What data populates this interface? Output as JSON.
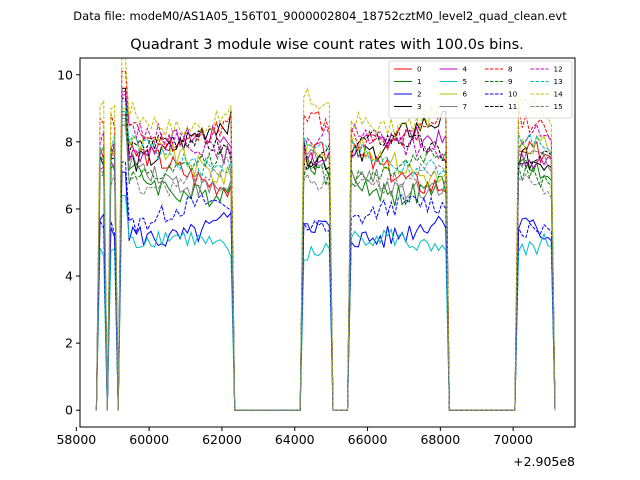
{
  "figure": {
    "suptitle": "Data file: modeM0/AS1A05_156T01_9000002804_18752cztM0_level2_quad_clean.evt"
  },
  "chart_data": {
    "type": "line",
    "title": "Quadrant 3 module wise count rates with 100.0s bins.",
    "xlabel": "",
    "ylabel": "",
    "x_offset_label": "+2.905e8",
    "xlim": [
      58100,
      71700
    ],
    "ylim": [
      -0.5,
      10.5
    ],
    "xticks": [
      58000,
      60000,
      62000,
      64000,
      66000,
      68000,
      70000
    ],
    "xtick_labels": [
      "58000",
      "60000",
      "62000",
      "64000",
      "66000",
      "68000",
      "70000"
    ],
    "yticks": [
      0,
      2,
      4,
      6,
      8,
      10
    ],
    "ytick_labels": [
      "0",
      "2",
      "4",
      "6",
      "8",
      "10"
    ],
    "grid": false,
    "legend_position": "top-right",
    "bin_seconds": 100,
    "gti": [
      [
        58600,
        58800
      ],
      [
        58950,
        59100
      ],
      [
        59250,
        62300
      ],
      [
        64250,
        65000
      ],
      [
        65550,
        68150
      ],
      [
        70100,
        71100
      ]
    ],
    "series": [
      {
        "name": "0",
        "color": "#ff0000",
        "dash": "solid",
        "level": 7.2,
        "noise": 0.35,
        "amp": 0.5
      },
      {
        "name": "1",
        "color": "#008000",
        "dash": "solid",
        "level": 6.9,
        "noise": 0.35,
        "amp": 0.5
      },
      {
        "name": "2",
        "color": "#0000ff",
        "dash": "solid",
        "level": 5.5,
        "noise": 0.35,
        "amp": 0.4
      },
      {
        "name": "3",
        "color": "#000000",
        "dash": "solid",
        "level": 8.0,
        "noise": 0.35,
        "amp": 0.6
      },
      {
        "name": "4",
        "color": "#c000c0",
        "dash": "solid",
        "level": 7.8,
        "noise": 0.3,
        "amp": 0.4
      },
      {
        "name": "5",
        "color": "#00bfbf",
        "dash": "solid",
        "level": 4.8,
        "noise": 0.3,
        "amp": 0.4
      },
      {
        "name": "6",
        "color": "#bfbf00",
        "dash": "solid",
        "level": 7.4,
        "noise": 0.35,
        "amp": 0.5
      },
      {
        "name": "7",
        "color": "#808080",
        "dash": "solid",
        "level": 7.1,
        "noise": 0.35,
        "amp": 0.5
      },
      {
        "name": "8",
        "color": "#ff0000",
        "dash": "dashed",
        "level": 8.5,
        "noise": 0.3,
        "amp": 0.5
      },
      {
        "name": "9",
        "color": "#008000",
        "dash": "dashed",
        "level": 7.3,
        "noise": 0.3,
        "amp": 0.4
      },
      {
        "name": "10",
        "color": "#0000ff",
        "dash": "dashed",
        "level": 5.8,
        "noise": 0.3,
        "amp": 0.4
      },
      {
        "name": "11",
        "color": "#000000",
        "dash": "dashed",
        "level": 7.7,
        "noise": 0.3,
        "amp": 0.4
      },
      {
        "name": "12",
        "color": "#c000c0",
        "dash": "dashed",
        "level": 7.9,
        "noise": 0.3,
        "amp": 0.4
      },
      {
        "name": "13",
        "color": "#00bfbf",
        "dash": "dashed",
        "level": 7.6,
        "noise": 0.3,
        "amp": 0.4
      },
      {
        "name": "14",
        "color": "#bfbf00",
        "dash": "dashed",
        "level": 8.9,
        "noise": 0.3,
        "amp": 0.5
      },
      {
        "name": "15",
        "color": "#808080",
        "dash": "dashed",
        "level": 7.0,
        "noise": 0.3,
        "amp": 0.4
      }
    ]
  }
}
